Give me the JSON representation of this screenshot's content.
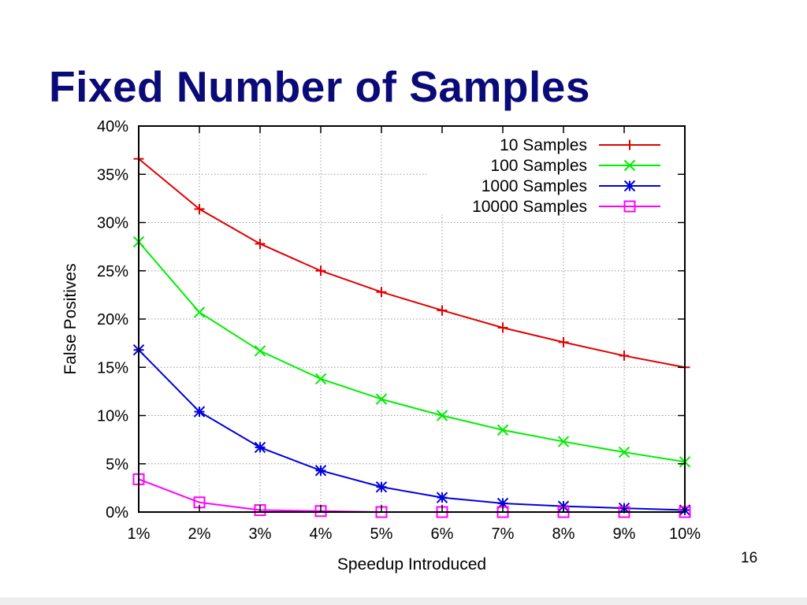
{
  "slide": {
    "title": "Fixed Number of Samples",
    "page_number": "16"
  },
  "colors": {
    "title": "#0a0a78",
    "series": [
      "#e00000",
      "#00ee00",
      "#0000e0",
      "#ff00ff"
    ]
  },
  "chart_data": {
    "type": "line",
    "xlabel": "Speedup Introduced",
    "ylabel": "False Positives",
    "x": [
      1,
      2,
      3,
      4,
      5,
      6,
      7,
      8,
      9,
      10
    ],
    "x_tick_labels": [
      "1%",
      "2%",
      "3%",
      "4%",
      "5%",
      "6%",
      "7%",
      "8%",
      "9%",
      "10%"
    ],
    "y_ticks": [
      0,
      5,
      10,
      15,
      20,
      25,
      30,
      35,
      40
    ],
    "y_tick_labels": [
      "0%",
      "5%",
      "10%",
      "15%",
      "20%",
      "25%",
      "30%",
      "35%",
      "40%"
    ],
    "xlim": [
      1,
      10
    ],
    "ylim": [
      0,
      40
    ],
    "grid": true,
    "legend_position": "top-right",
    "series": [
      {
        "name": "10 Samples",
        "marker": "plus",
        "color": "#e00000",
        "values": [
          36.6,
          31.4,
          27.8,
          25.0,
          22.8,
          20.9,
          19.1,
          17.6,
          16.2,
          15.0
        ]
      },
      {
        "name": "100 Samples",
        "marker": "x",
        "color": "#00ee00",
        "values": [
          28.0,
          20.7,
          16.7,
          13.8,
          11.7,
          10.0,
          8.5,
          7.3,
          6.2,
          5.2
        ]
      },
      {
        "name": "1000 Samples",
        "marker": "star",
        "color": "#0000e0",
        "values": [
          16.8,
          10.4,
          6.7,
          4.3,
          2.6,
          1.5,
          0.9,
          0.6,
          0.4,
          0.2
        ]
      },
      {
        "name": "10000 Samples",
        "marker": "square",
        "color": "#ff00ff",
        "values": [
          3.4,
          1.0,
          0.2,
          0.1,
          0.0,
          0.0,
          0.0,
          0.0,
          0.0,
          0.0
        ]
      }
    ]
  }
}
